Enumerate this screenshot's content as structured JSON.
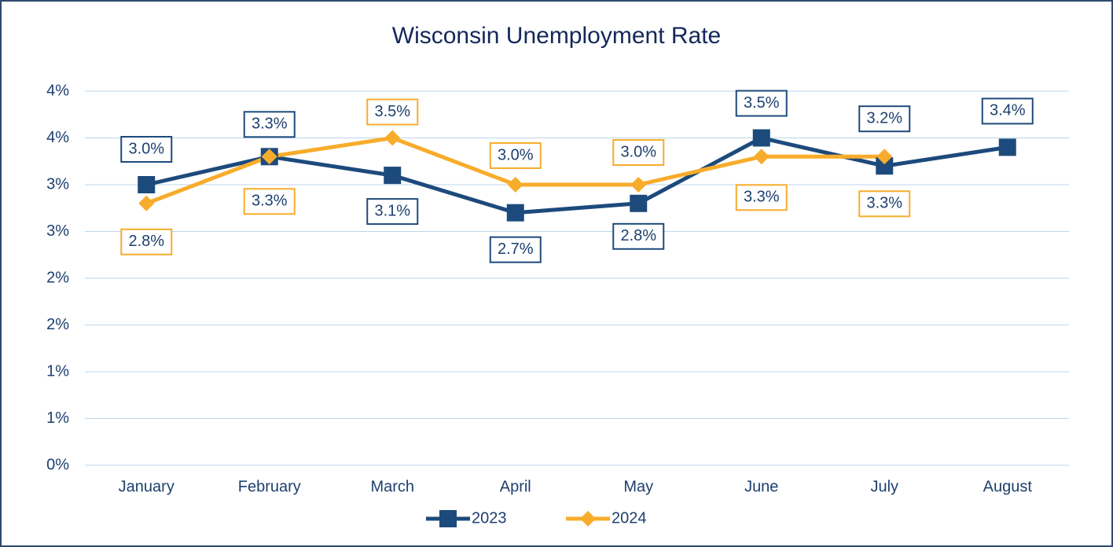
{
  "chart_data": {
    "type": "line",
    "title": "Wisconsin Unemployment Rate",
    "categories": [
      "January",
      "February",
      "March",
      "April",
      "May",
      "June",
      "July",
      "August"
    ],
    "series": [
      {
        "name": "2023",
        "color": "#1d4a7c",
        "marker": "square",
        "values": [
          3.0,
          3.3,
          3.1,
          2.7,
          2.8,
          3.5,
          3.2,
          3.4
        ],
        "value_labels": [
          "3.0%",
          "3.3%",
          "3.1%",
          "2.7%",
          "2.8%",
          "3.5%",
          "3.2%",
          "3.4%"
        ]
      },
      {
        "name": "2024",
        "color": "#f7ac2b",
        "marker": "diamond",
        "values": [
          2.8,
          3.3,
          3.5,
          3.0,
          3.0,
          3.3,
          3.3,
          null
        ],
        "value_labels": [
          "2.8%",
          "3.3%",
          "3.5%",
          "3.0%",
          "3.0%",
          "3.3%",
          "3.3%",
          null
        ]
      }
    ],
    "ylim": [
      0,
      4
    ],
    "yticks": [
      {
        "value": 0,
        "label": "0%"
      },
      {
        "value": 0.5,
        "label": "1%"
      },
      {
        "value": 1,
        "label": "1%"
      },
      {
        "value": 1.5,
        "label": "2%"
      },
      {
        "value": 2,
        "label": "2%"
      },
      {
        "value": 2.5,
        "label": "3%"
      },
      {
        "value": 3,
        "label": "3%"
      },
      {
        "value": 3.5,
        "label": "4%"
      },
      {
        "value": 4,
        "label": "4%"
      }
    ],
    "grid": true,
    "legend": "bottom"
  }
}
